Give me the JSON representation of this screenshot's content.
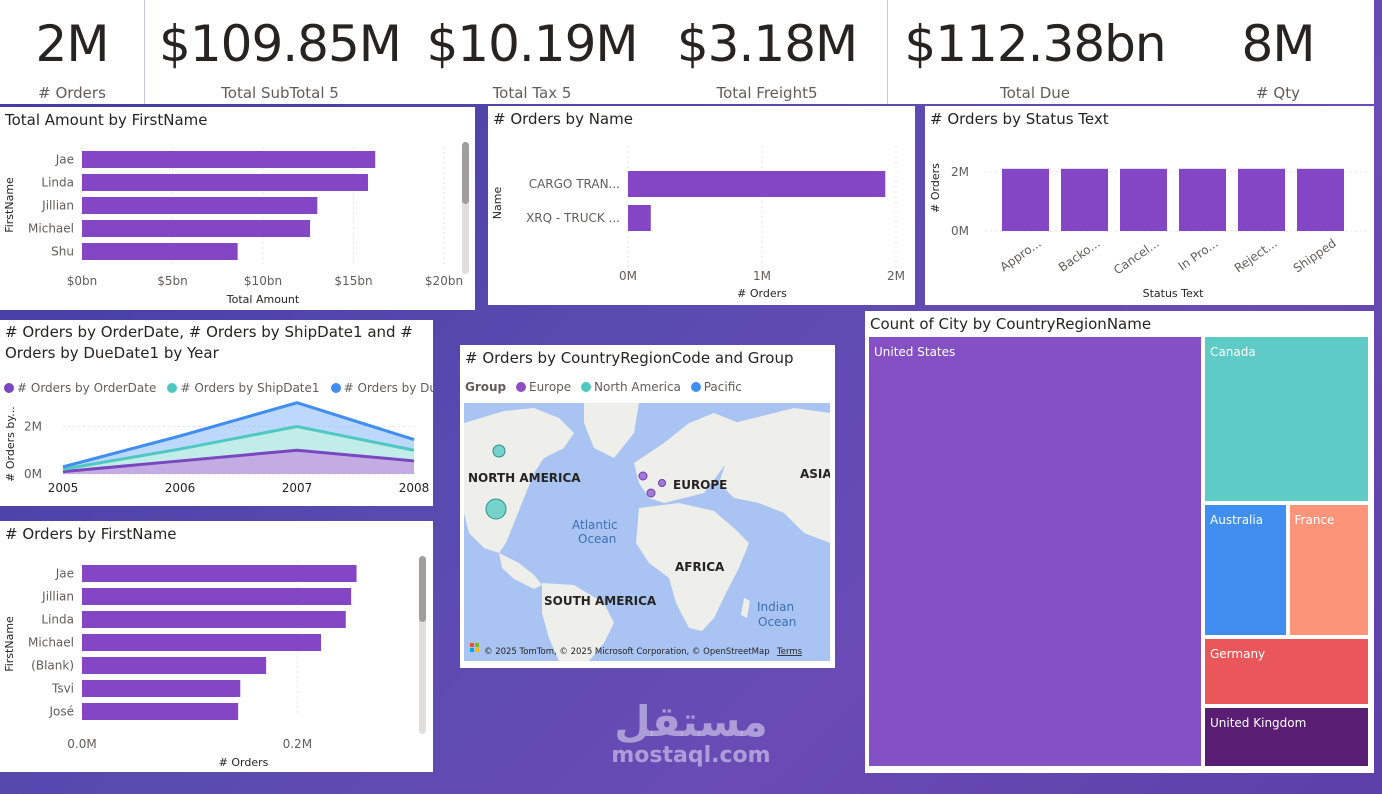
{
  "kpis": [
    {
      "value": "2M",
      "label": "# Orders"
    },
    {
      "value": "$109.85M",
      "label": "Total SubTotal 5"
    },
    {
      "value": "$10.19M",
      "label": "Total Tax 5"
    },
    {
      "value": "$3.18M",
      "label": "Total Freight5"
    },
    {
      "value": "$112.38bn",
      "label": "Total Due"
    },
    {
      "value": "8M",
      "label": "# Qty"
    }
  ],
  "panels": {
    "amount_by_firstname": {
      "title": "Total Amount by FirstName"
    },
    "orders_by_name": {
      "title": "# Orders by Name"
    },
    "orders_by_status": {
      "title": "# Orders by Status Text"
    },
    "orders_by_year": {
      "title_line1": "# Orders by OrderDate, # Orders by ShipDate1 and #",
      "title_line2": "Orders by DueDate1 by Year"
    },
    "orders_by_country": {
      "title": "# Orders by CountryRegionCode and Group"
    },
    "city_by_country": {
      "title": "Count of City by CountryRegionName"
    },
    "orders_by_firstname": {
      "title": "# Orders by FirstName"
    }
  },
  "map": {
    "legend_title": "Group",
    "legend": [
      {
        "name": "Europe",
        "color": "#8d4ec4"
      },
      {
        "name": "North America",
        "color": "#4ec9c1"
      },
      {
        "name": "Pacific",
        "color": "#3f8ef0"
      }
    ],
    "labels": {
      "north_america": "NORTH AMERICA",
      "europe": "EUROPE",
      "asia": "ASIA",
      "atlantic": "Atlantic",
      "ocean": "Ocean",
      "africa": "AFRICA",
      "south_america": "SOUTH AMERICA",
      "indian": "Indian",
      "indian_ocean": "Ocean"
    },
    "copyright": "© 2025 TomTom, © 2025 Microsoft Corporation, © OpenStreetMap",
    "terms": "Terms"
  },
  "watermark": {
    "arabic": "مستقل",
    "latin": "mostaql.com"
  },
  "chart_data": [
    {
      "id": "amount_by_firstname",
      "type": "bar",
      "orientation": "horizontal",
      "title": "Total Amount by FirstName",
      "xlabel": "Total Amount",
      "ylabel": "FirstName",
      "categories": [
        "Jae",
        "Linda",
        "Jillian",
        "Michael",
        "Shu"
      ],
      "values": [
        16.2,
        15.8,
        13.0,
        12.6,
        8.6
      ],
      "unit": "bn",
      "xlim": [
        0,
        20
      ],
      "ticks": [
        0,
        5,
        10,
        15,
        20
      ],
      "tick_labels": [
        "$0bn",
        "$5bn",
        "$10bn",
        "$15bn",
        "$20bn"
      ],
      "color": "#8446c4"
    },
    {
      "id": "orders_by_name",
      "type": "bar",
      "orientation": "horizontal",
      "title": "# Orders by Name",
      "xlabel": "# Orders",
      "ylabel": "Name",
      "categories": [
        "CARGO TRAN...",
        "XRQ - TRUCK ..."
      ],
      "values": [
        1.92,
        0.17
      ],
      "unit": "M",
      "xlim": [
        0,
        2
      ],
      "ticks": [
        0,
        1,
        2
      ],
      "tick_labels": [
        "0M",
        "1M",
        "2M"
      ],
      "color": "#8446c4"
    },
    {
      "id": "orders_by_status",
      "type": "bar",
      "orientation": "vertical",
      "title": "# Orders by Status Text",
      "xlabel": "Status Text",
      "ylabel": "# Orders",
      "categories": [
        "Appro...",
        "Backo...",
        "Cancel...",
        "In Pro...",
        "Reject...",
        "Shipped"
      ],
      "values": [
        2.1,
        2.1,
        2.1,
        2.1,
        2.1,
        2.1
      ],
      "unit": "M",
      "ylim": [
        0,
        2.6
      ],
      "ticks": [
        0,
        2
      ],
      "tick_labels": [
        "0M",
        "2M"
      ],
      "color": "#8446c4"
    },
    {
      "id": "orders_by_year",
      "type": "area",
      "stacked": true,
      "title": "# Orders by OrderDate, # Orders by ShipDate1 and # Orders by DueDate1 by Year",
      "ylabel": "# Orders by...",
      "x": [
        2005,
        2006,
        2007,
        2008
      ],
      "series": [
        {
          "name": "# Orders by OrderDate",
          "values": [
            0.1,
            0.55,
            1.0,
            0.55
          ],
          "color": "#7b47c0"
        },
        {
          "name": "# Orders by ShipDate1",
          "values": [
            0.1,
            0.5,
            1.0,
            0.45
          ],
          "color": "#4ec9c1"
        },
        {
          "name": "# Orders by DueDate1",
          "values": [
            0.1,
            0.55,
            1.0,
            0.45
          ],
          "color": "#3f8ef0"
        }
      ],
      "legend": [
        "# Orders by OrderDate",
        "# Orders by ShipDate1",
        "# Orders by Due..."
      ],
      "ylim": [
        0,
        3.2
      ],
      "ticks": [
        0,
        2
      ],
      "tick_labels": [
        "0M",
        "2M"
      ]
    },
    {
      "id": "orders_by_firstname",
      "type": "bar",
      "orientation": "horizontal",
      "title": "# Orders by FirstName",
      "xlabel": "# Orders",
      "ylabel": "FirstName",
      "categories": [
        "Jae",
        "Jillian",
        "Linda",
        "Michael",
        "(Blank)",
        "Tsvi",
        "José"
      ],
      "values": [
        0.255,
        0.25,
        0.245,
        0.222,
        0.171,
        0.147,
        0.145
      ],
      "unit": "M",
      "xlim": [
        0,
        0.3
      ],
      "ticks": [
        0,
        0.2
      ],
      "tick_labels": [
        "0.0M",
        "0.2M"
      ],
      "color": "#8446c4"
    },
    {
      "id": "city_by_country",
      "type": "treemap",
      "title": "Count of City by CountryRegionName",
      "categories": [
        "United States",
        "Canada",
        "Australia",
        "France",
        "Germany",
        "United Kingdom"
      ],
      "values": [
        52,
        10,
        4,
        4,
        4,
        4
      ],
      "colors": [
        "#8650c5",
        "#5fcbc6",
        "#3f8ef0",
        "#fc9479",
        "#e9575a",
        "#5a1d74"
      ]
    },
    {
      "id": "orders_by_country",
      "type": "scatter",
      "subtype": "bubble-map",
      "title": "# Orders by CountryRegionCode and Group",
      "points": [
        {
          "group": "North America",
          "label": "Canada",
          "size": 1
        },
        {
          "group": "North America",
          "label": "United States",
          "size": 2
        },
        {
          "group": "Europe",
          "label": "United Kingdom",
          "size": 0.5
        },
        {
          "group": "Europe",
          "label": "Germany",
          "size": 0.4
        },
        {
          "group": "Europe",
          "label": "France",
          "size": 0.5
        }
      ]
    }
  ]
}
